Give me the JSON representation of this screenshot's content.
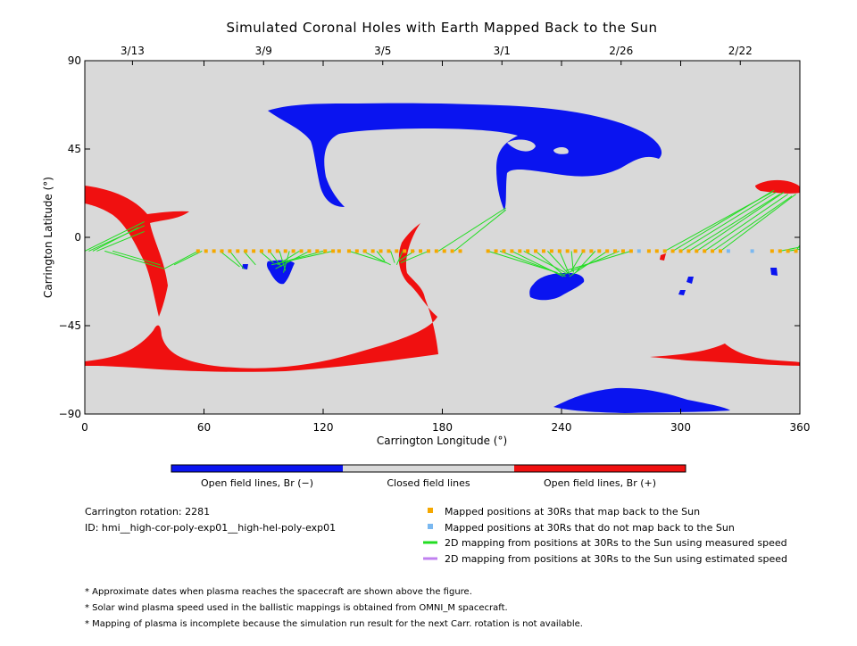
{
  "chart_data": {
    "type": "map",
    "title": "Simulated Coronal Holes with Earth Mapped Back to the Sun",
    "xlabel": "Carrington Longitude (°)",
    "ylabel": "Carrington Latitude (°)",
    "xlim": [
      0,
      360
    ],
    "ylim": [
      -90,
      90
    ],
    "xticks": [
      0,
      60,
      120,
      180,
      240,
      300,
      360
    ],
    "yticks": [
      90,
      45,
      0,
      -45,
      -90
    ],
    "top_date_ticks": [
      {
        "lon": 24,
        "label": "3/13"
      },
      {
        "lon": 90,
        "label": "3/9"
      },
      {
        "lon": 150,
        "label": "3/5"
      },
      {
        "lon": 210,
        "label": "3/1"
      },
      {
        "lon": 270,
        "label": "2/26"
      },
      {
        "lon": 330,
        "label": "2/22"
      }
    ],
    "colorbar": {
      "segments": [
        {
          "label": "Open field lines, Br (−)",
          "color": "#0a14f0"
        },
        {
          "label": "Closed field lines",
          "color": "#d9d9d9"
        },
        {
          "label": "Open field lines, Br (+)",
          "color": "#f01010"
        }
      ]
    },
    "colors": {
      "negative": "#0a14f0",
      "positive": "#f01010",
      "closed": "#d9d9d9",
      "mapped_back": "#f5a800",
      "not_mapped": "#7ab8f0",
      "measured_line": "#22dd22",
      "estimated_line": "#c080f0"
    },
    "mapped_points_lat": -7,
    "mapped_back_lons": [
      57,
      61,
      65,
      69,
      73,
      77,
      81,
      85,
      89,
      93,
      97,
      101,
      105,
      109,
      113,
      117,
      121,
      125,
      128,
      133,
      137,
      141,
      145,
      149,
      153,
      157,
      161,
      165,
      169,
      173,
      177,
      181,
      185,
      189,
      203,
      207,
      211,
      215,
      219,
      223,
      227,
      231,
      235,
      239,
      243,
      247,
      251,
      255,
      259,
      263,
      267,
      271,
      275,
      284,
      288,
      292,
      296,
      300,
      304,
      308,
      312,
      316,
      320,
      346,
      350,
      354,
      358
    ],
    "not_mapped_lons": [
      279,
      324,
      336
    ],
    "mapping_lines": [
      [
        0,
        -7,
        30,
        8
      ],
      [
        2,
        -7,
        30,
        6
      ],
      [
        4,
        -7,
        27,
        5
      ],
      [
        6,
        -7,
        30,
        3
      ],
      [
        10,
        -7,
        40,
        -16
      ],
      [
        14,
        -7,
        38,
        -14
      ],
      [
        57,
        -7,
        40,
        -16
      ],
      [
        59,
        -7,
        45,
        -14
      ],
      [
        68,
        -7,
        78,
        -15
      ],
      [
        73,
        -7,
        80,
        -16
      ],
      [
        80,
        -7,
        86,
        -14
      ],
      [
        88,
        -7,
        95,
        -13
      ],
      [
        93,
        -7,
        99,
        -15
      ],
      [
        98,
        -7,
        101,
        -17
      ],
      [
        103,
        -7,
        100,
        -18
      ],
      [
        108,
        -7,
        97,
        -14
      ],
      [
        113,
        -7,
        96,
        -16
      ],
      [
        120,
        -7,
        98,
        -13
      ],
      [
        125,
        -7,
        94,
        -14
      ],
      [
        133,
        -7,
        152,
        -13
      ],
      [
        140,
        -7,
        154,
        -14
      ],
      [
        147,
        -7,
        151,
        -12
      ],
      [
        154,
        -7,
        156,
        -13
      ],
      [
        160,
        -7,
        157,
        -14
      ],
      [
        166,
        -7,
        158,
        -12
      ],
      [
        173,
        -7,
        159,
        -13
      ],
      [
        178,
        -7,
        212,
        15
      ],
      [
        186,
        -7,
        212,
        14
      ],
      [
        203,
        -7,
        238,
        -18
      ],
      [
        209,
        -7,
        240,
        -19
      ],
      [
        215,
        -7,
        241,
        -20
      ],
      [
        221,
        -7,
        242,
        -18
      ],
      [
        227,
        -7,
        242,
        -20
      ],
      [
        233,
        -7,
        243,
        -18
      ],
      [
        239,
        -7,
        244,
        -19
      ],
      [
        245,
        -7,
        246,
        -18
      ],
      [
        251,
        -7,
        245,
        -17
      ],
      [
        257,
        -7,
        247,
        -18
      ],
      [
        263,
        -7,
        244,
        -20
      ],
      [
        269,
        -7,
        241,
        -19
      ],
      [
        275,
        -7,
        242,
        -17
      ],
      [
        300,
        -7,
        348,
        23
      ],
      [
        304,
        -7,
        350,
        22
      ],
      [
        308,
        -7,
        352,
        23
      ],
      [
        312,
        -7,
        354,
        22
      ],
      [
        316,
        -7,
        356,
        21
      ],
      [
        320,
        -7,
        358,
        22
      ],
      [
        296,
        -7,
        347,
        24
      ],
      [
        292,
        -7,
        346,
        23
      ],
      [
        350,
        -7,
        360,
        -5
      ],
      [
        354,
        -7,
        360,
        -6
      ],
      [
        358,
        -7,
        360,
        -4
      ]
    ],
    "legend_items": [
      {
        "marker": "square",
        "color": "#f5a800",
        "label": "Mapped positions at 30Rs that map back to the Sun"
      },
      {
        "marker": "square",
        "color": "#7ab8f0",
        "label": "Mapped positions at 30Rs that do not map back to the Sun"
      },
      {
        "marker": "line",
        "color": "#22dd22",
        "label": "2D mapping from positions at 30Rs to the Sun using measured speed"
      },
      {
        "marker": "line",
        "color": "#c080f0",
        "label": "2D mapping from positions at 30Rs to the Sun using estimated speed"
      }
    ],
    "info": {
      "rotation": "Carrington rotation: 2281",
      "id": "ID: hmi__high-cor-poly-exp01__high-hel-poly-exp01"
    },
    "notes": [
      "* Approximate dates when plasma reaches the spacecraft are shown above the figure.",
      "* Solar wind plasma speed used in the ballistic mappings is obtained from OMNI_M spacecraft.",
      "* Mapping of plasma is incomplete because the simulation run result for the next Carr. rotation is not available."
    ]
  }
}
